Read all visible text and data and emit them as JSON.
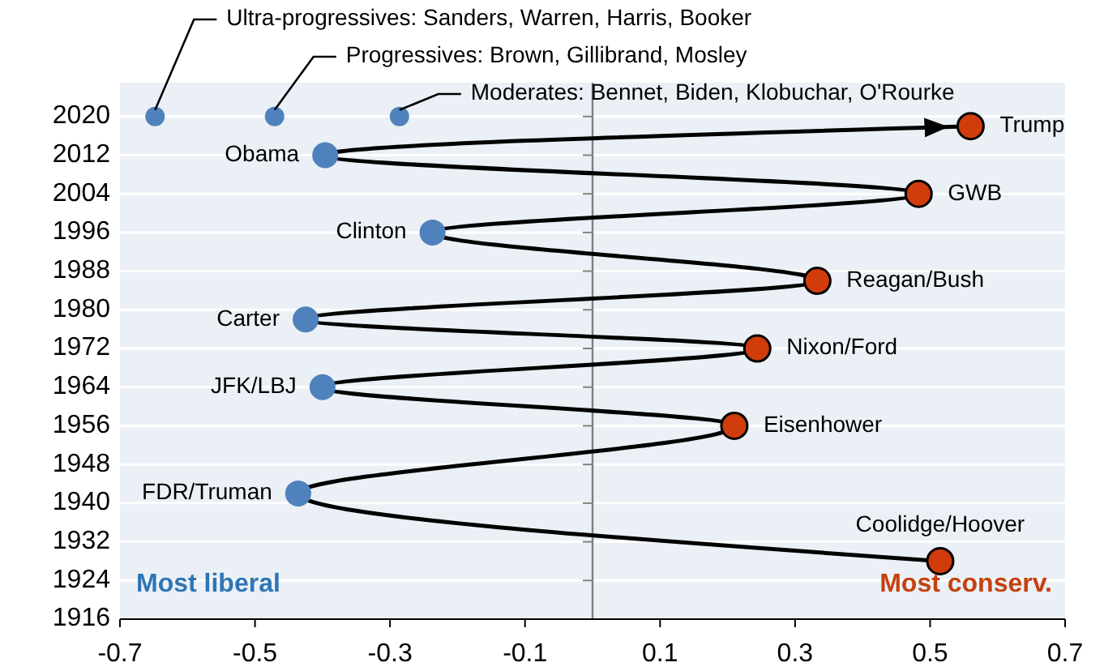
{
  "chart_data": {
    "type": "line",
    "xlim": [
      -0.7,
      0.7
    ],
    "xticks": [
      -0.7,
      -0.5,
      -0.3,
      -0.1,
      0.1,
      0.3,
      0.5,
      0.7
    ],
    "ylim": [
      1916,
      2027
    ],
    "yticks": [
      1916,
      1924,
      1932,
      1940,
      1948,
      1956,
      1964,
      1972,
      1980,
      1988,
      1996,
      2004,
      2012,
      2020
    ],
    "grid": "y",
    "marker": "circle",
    "line_style": "solid",
    "series": [
      {
        "color": "#000000",
        "x": [
          0.515,
          -0.436,
          0.21,
          -0.4,
          0.244,
          -0.425,
          0.333,
          -0.237,
          0.483,
          -0.396,
          0.56
        ],
        "values": [
          1928,
          1942,
          1956,
          1964,
          1972,
          1978,
          1986,
          1996,
          2004,
          2012,
          2018
        ],
        "colors": [
          "#d03c0c",
          "#4f81bd",
          "#d03c0c",
          "#4f81bd",
          "#d03c0c",
          "#4f81bd",
          "#d03c0c",
          "#4f81bd",
          "#d03c0c",
          "#4f81bd",
          "#d03c0c"
        ]
      },
      {
        "type": "scatter",
        "color": "#4f81bd",
        "x": [
          -0.648,
          -0.471,
          -0.286
        ],
        "values": [
          2020,
          2020,
          2020
        ]
      }
    ],
    "ref_lines": [
      {
        "axis": "x",
        "value": 0,
        "color": "#7f7f7f"
      }
    ],
    "annotations": [
      {
        "text": "Coolidge/Hoover",
        "x": 0.515,
        "y": 1928
      },
      {
        "text": "FDR/Truman",
        "x": -0.436,
        "y": 1942
      },
      {
        "text": "Eisenhower",
        "x": 0.21,
        "y": 1956
      },
      {
        "text": "JFK/LBJ",
        "x": -0.4,
        "y": 1964
      },
      {
        "text": "Nixon/Ford",
        "x": 0.244,
        "y": 1972
      },
      {
        "text": "Carter",
        "x": -0.425,
        "y": 1978
      },
      {
        "text": "Reagan/Bush",
        "x": 0.333,
        "y": 1986
      },
      {
        "text": "Clinton",
        "x": -0.237,
        "y": 1996
      },
      {
        "text": "GWB",
        "x": 0.483,
        "y": 2004
      },
      {
        "text": "Obama",
        "x": -0.396,
        "y": 2012
      },
      {
        "text": "Trump",
        "x": 0.56,
        "y": 2018
      },
      {
        "text": "Ultra-progressives: Sanders, Warren, Harris, Booker",
        "x": -0.648,
        "y": 2020
      },
      {
        "text": "Progressives: Brown, Gillibrand, Mosley",
        "x": -0.471,
        "y": 2020
      },
      {
        "text": "Moderates: Bennet, Biden, Klobuchar, O'Rourke",
        "x": -0.286,
        "y": 2020
      },
      "Most liberal",
      "Most conserv."
    ]
  }
}
